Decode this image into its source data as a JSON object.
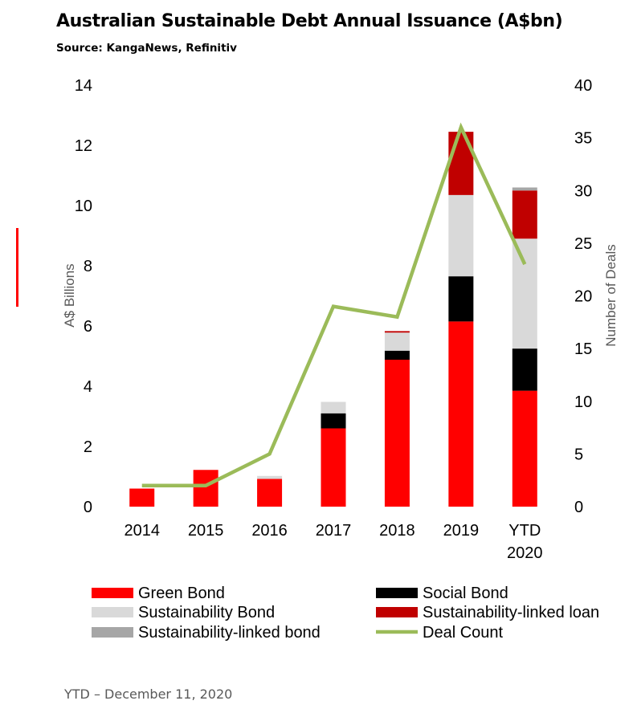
{
  "title": "Australian Sustainable Debt Annual Issuance (A$bn)",
  "source": "Source: KangaNews, Refinitiv",
  "footer": "YTD – December 11, 2020",
  "chart_data": {
    "type": "bar",
    "stacked": true,
    "title": "Australian Sustainable Debt Annual Issuance (A$bn)",
    "categories": [
      "2014",
      "2015",
      "2016",
      "2017",
      "2018",
      "2019",
      "YTD 2020"
    ],
    "ylabel": "A$ Billions",
    "y2label": "Number of Deals",
    "ylim": [
      0,
      14
    ],
    "y2lim": [
      0,
      40
    ],
    "yticks": [
      "0",
      "2",
      "4",
      "6",
      "8",
      "10",
      "12",
      "14"
    ],
    "y2ticks": [
      "0",
      "5",
      "10",
      "15",
      "20",
      "25",
      "30",
      "35",
      "40"
    ],
    "grid": false,
    "legend_position": "bottom",
    "series": [
      {
        "name": "Green Bond",
        "color": "#ff0000",
        "values": [
          0.6,
          1.22,
          0.92,
          2.6,
          4.88,
          6.15,
          3.85
        ]
      },
      {
        "name": "Social Bond",
        "color": "#000000",
        "values": [
          0,
          0,
          0,
          0.5,
          0.3,
          1.5,
          1.4
        ]
      },
      {
        "name": "Sustainability Bond",
        "color": "#d9d9d9",
        "values": [
          0,
          0,
          0.1,
          0.38,
          0.6,
          2.7,
          3.65
        ]
      },
      {
        "name": "Sustainability-linked loan",
        "color": "#c00000",
        "values": [
          0,
          0,
          0,
          0,
          0.05,
          2.1,
          1.6
        ]
      },
      {
        "name": "Sustainability-linked bond",
        "color": "#a6a6a6",
        "values": [
          0,
          0,
          0,
          0,
          0,
          0,
          0.1
        ]
      }
    ],
    "line_series": {
      "name": "Deal Count",
      "color": "#9bbb59",
      "axis": "secondary",
      "values": [
        2,
        2,
        5,
        19,
        18,
        36,
        23
      ]
    }
  }
}
